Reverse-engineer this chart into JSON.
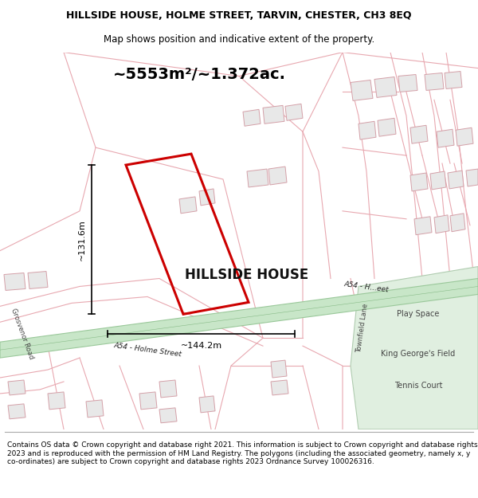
{
  "title_line1": "HILLSIDE HOUSE, HOLME STREET, TARVIN, CHESTER, CH3 8EQ",
  "title_line2": "Map shows position and indicative extent of the property.",
  "area_text": "~5553m²/~1.372ac.",
  "property_label": "HILLSIDE HOUSE",
  "height_label": "~131.6m",
  "width_label": "~144.2m",
  "road_label": "A54 - Holme Street",
  "road_label2": "A54 - H...eet",
  "play_space_label": "Play Space",
  "king_george_label": "King George's Field",
  "tennis_label": "Tennis Court",
  "grosvenor_label": "Grosvenor Road",
  "townfield_label": "Townfield Lane",
  "footer_text": "Contains OS data © Crown copyright and database right 2021. This information is subject to Crown copyright and database rights 2023 and is reproduced with the permission of HM Land Registry. The polygons (including the associated geometry, namely x, y co-ordinates) are subject to Crown copyright and database rights 2023 Ordnance Survey 100026316.",
  "bg_color": "#ffffff",
  "map_bg": "#faf5f5",
  "road_fill": "#c8e6c8",
  "road_edge": "#9ac89a",
  "property_color": "#cc0000",
  "building_fill": "#f0e8e8",
  "building_edge": "#d4a0a8",
  "green_fill": "#e0efe0",
  "green_edge": "#b0ccb0",
  "dim_color": "#000000",
  "pink_line": "#e8a8b0",
  "title_fontsize": 9,
  "subtitle_fontsize": 8.5,
  "area_fontsize": 14,
  "prop_label_fontsize": 12,
  "footer_fontsize": 6.5
}
